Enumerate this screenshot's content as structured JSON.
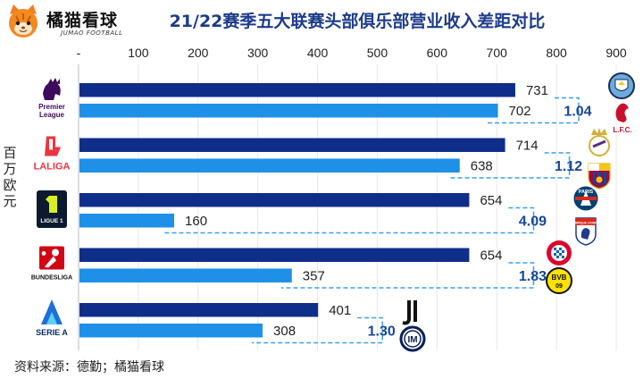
{
  "brand": {
    "name_cn": "橘猫看球",
    "name_en": "JUMAO FOOTBALL",
    "icon": "cat-head-icon"
  },
  "title": "21/22赛季五大联赛头部俱乐部营业收入差距对比",
  "unit_label": "百万欧元",
  "source": "资料来源：德勤；橘猫看球",
  "colors": {
    "top_club": "#0f2e8a",
    "second_club": "#1e90e8",
    "title": "#1c3b8a",
    "connector": "#3aa0f0",
    "ratio_text": "#16479a"
  },
  "chart_data": {
    "type": "bar",
    "orientation": "horizontal",
    "title": "21/22赛季五大联赛头部俱乐部营业收入差距对比",
    "ylabel": "百万欧元",
    "xlim": [
      0,
      900
    ],
    "xticks": [
      "-",
      "100",
      "200",
      "300",
      "400",
      "500",
      "600",
      "700",
      "800",
      "900"
    ],
    "grid": true,
    "leagues": [
      {
        "logo_label": "Premier League",
        "logo_icon": "premier-league-logo-icon",
        "top": {
          "value": 731,
          "label": "731",
          "club_icon": "manchester-city-crest-icon"
        },
        "second": {
          "value": 702,
          "label": "702",
          "club_icon": "liverpool-crest-icon",
          "club_text": "L.F.C."
        },
        "ratio": "1.04"
      },
      {
        "logo_label": "LALIGA",
        "logo_icon": "laliga-logo-icon",
        "top": {
          "value": 714,
          "label": "714",
          "club_icon": "real-madrid-crest-icon"
        },
        "second": {
          "value": 638,
          "label": "638",
          "club_icon": "barcelona-crest-icon"
        },
        "ratio": "1.12"
      },
      {
        "logo_label": "LIGUE 1",
        "logo_icon": "ligue1-logo-icon",
        "top": {
          "value": 654,
          "label": "654",
          "club_icon": "psg-crest-icon",
          "club_text": "PARIS"
        },
        "second": {
          "value": 160,
          "label": "160",
          "club_icon": "lyon-crest-icon",
          "club_text": "OLYMPIQUE LYONNAIS"
        },
        "ratio": "4.09"
      },
      {
        "logo_label": "BUNDESLIGA",
        "logo_icon": "bundesliga-logo-icon",
        "top": {
          "value": 654,
          "label": "654",
          "club_icon": "bayern-crest-icon"
        },
        "second": {
          "value": 357,
          "label": "357",
          "club_icon": "dortmund-crest-icon",
          "club_text": "BVB 09"
        },
        "ratio": "1.83"
      },
      {
        "logo_label": "SERIE A",
        "logo_icon": "serie-a-logo-icon",
        "top": {
          "value": 401,
          "label": "401",
          "club_icon": "juventus-crest-icon"
        },
        "second": {
          "value": 308,
          "label": "308",
          "club_icon": "inter-crest-icon",
          "club_text": "IM"
        },
        "ratio": "1.30"
      }
    ]
  }
}
